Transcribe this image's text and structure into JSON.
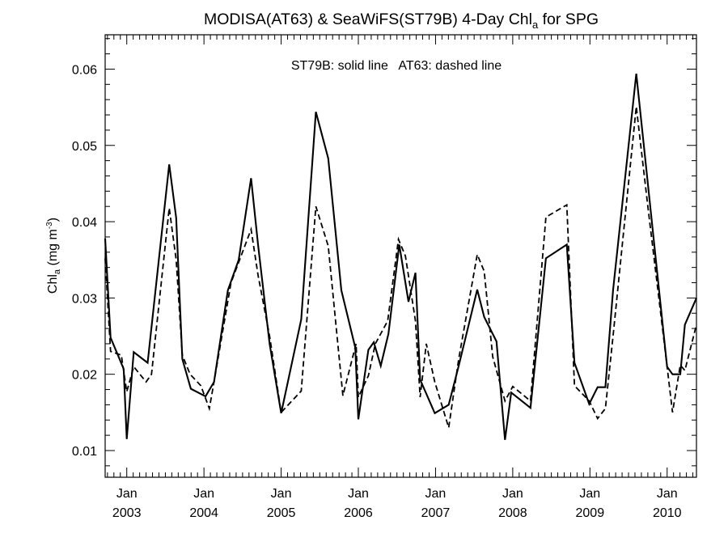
{
  "chart_data": {
    "type": "line",
    "title_main": "MODISA(AT63) & SeaWiFS(ST79B) 4-Day Chl",
    "title_sub": "a",
    "title_tail": " for SPG",
    "annotation": "ST79B: solid line   AT63: dashed line",
    "ylabel_main": "Chl",
    "ylabel_sub": "a",
    "ylabel_unit_open": " (mg m",
    "ylabel_unit_sup": "-3",
    "ylabel_unit_close": ")",
    "xlim": [
      2002.72,
      2010.38
    ],
    "ylim": [
      0.0065,
      0.0645
    ],
    "yticks": [
      0.01,
      0.02,
      0.03,
      0.04,
      0.05,
      0.06
    ],
    "ytick_labels": [
      "0.01",
      "0.02",
      "0.03",
      "0.04",
      "0.05",
      "0.06"
    ],
    "xticks": [
      2003,
      2004,
      2005,
      2006,
      2007,
      2008,
      2009,
      2010
    ],
    "xtick_labels_top": [
      "Jan",
      "Jan",
      "Jan",
      "Jan",
      "Jan",
      "Jan",
      "Jan",
      "Jan"
    ],
    "xtick_labels_bottom": [
      "2003",
      "2004",
      "2005",
      "2006",
      "2007",
      "2008",
      "2009",
      "2010"
    ],
    "series": [
      {
        "name": "ST79B",
        "style": "solid",
        "color": "#000000",
        "points": [
          [
            2002.72,
            0.0378
          ],
          [
            2002.79,
            0.0248
          ],
          [
            2002.96,
            0.0207
          ],
          [
            2003.0,
            0.0115
          ],
          [
            2003.09,
            0.0229
          ],
          [
            2003.27,
            0.0215
          ],
          [
            2003.55,
            0.0475
          ],
          [
            2003.64,
            0.0405
          ],
          [
            2003.72,
            0.022
          ],
          [
            2003.83,
            0.0181
          ],
          [
            2004.02,
            0.0171
          ],
          [
            2004.13,
            0.019
          ],
          [
            2004.31,
            0.031
          ],
          [
            2004.45,
            0.035
          ],
          [
            2004.61,
            0.0457
          ],
          [
            2004.7,
            0.037
          ],
          [
            2004.85,
            0.024
          ],
          [
            2005.0,
            0.0149
          ],
          [
            2005.26,
            0.0272
          ],
          [
            2005.45,
            0.0544
          ],
          [
            2005.61,
            0.0483
          ],
          [
            2005.78,
            0.031
          ],
          [
            2005.96,
            0.0235
          ],
          [
            2006.0,
            0.0141
          ],
          [
            2006.13,
            0.0232
          ],
          [
            2006.2,
            0.0242
          ],
          [
            2006.29,
            0.0211
          ],
          [
            2006.39,
            0.0253
          ],
          [
            2006.53,
            0.037
          ],
          [
            2006.65,
            0.0295
          ],
          [
            2006.74,
            0.0333
          ],
          [
            2006.8,
            0.0193
          ],
          [
            2006.99,
            0.0149
          ],
          [
            2007.17,
            0.016
          ],
          [
            2007.3,
            0.0211
          ],
          [
            2007.54,
            0.0311
          ],
          [
            2007.63,
            0.0275
          ],
          [
            2007.79,
            0.0243
          ],
          [
            2007.9,
            0.0114
          ],
          [
            2007.98,
            0.0176
          ],
          [
            2008.23,
            0.0156
          ],
          [
            2008.43,
            0.0352
          ],
          [
            2008.7,
            0.037
          ],
          [
            2008.8,
            0.0215
          ],
          [
            2008.99,
            0.0161
          ],
          [
            2009.1,
            0.0183
          ],
          [
            2009.2,
            0.0183
          ],
          [
            2009.3,
            0.031
          ],
          [
            2009.6,
            0.0594
          ],
          [
            2009.75,
            0.045
          ],
          [
            2010.0,
            0.021
          ],
          [
            2010.07,
            0.02
          ],
          [
            2010.17,
            0.02
          ],
          [
            2010.23,
            0.0265
          ],
          [
            2010.38,
            0.03
          ]
        ]
      },
      {
        "name": "AT63",
        "style": "dashed",
        "color": "#000000",
        "points": [
          [
            2002.72,
            0.0352
          ],
          [
            2002.79,
            0.023
          ],
          [
            2002.93,
            0.0225
          ],
          [
            2003.0,
            0.0177
          ],
          [
            2003.09,
            0.021
          ],
          [
            2003.25,
            0.019
          ],
          [
            2003.32,
            0.02
          ],
          [
            2003.55,
            0.0418
          ],
          [
            2003.64,
            0.035
          ],
          [
            2003.72,
            0.0225
          ],
          [
            2003.82,
            0.02
          ],
          [
            2003.96,
            0.0185
          ],
          [
            2004.07,
            0.0155
          ],
          [
            2004.13,
            0.019
          ],
          [
            2004.35,
            0.032
          ],
          [
            2004.61,
            0.039
          ],
          [
            2004.7,
            0.033
          ],
          [
            2004.85,
            0.025
          ],
          [
            2005.0,
            0.015
          ],
          [
            2005.26,
            0.0178
          ],
          [
            2005.45,
            0.042
          ],
          [
            2005.61,
            0.0368
          ],
          [
            2005.8,
            0.0172
          ],
          [
            2005.97,
            0.024
          ],
          [
            2006.0,
            0.017
          ],
          [
            2006.13,
            0.0198
          ],
          [
            2006.22,
            0.024
          ],
          [
            2006.38,
            0.027
          ],
          [
            2006.52,
            0.0377
          ],
          [
            2006.61,
            0.0355
          ],
          [
            2006.74,
            0.027
          ],
          [
            2006.8,
            0.017
          ],
          [
            2006.88,
            0.024
          ],
          [
            2006.99,
            0.019
          ],
          [
            2007.17,
            0.013
          ],
          [
            2007.3,
            0.022
          ],
          [
            2007.54,
            0.0357
          ],
          [
            2007.63,
            0.0335
          ],
          [
            2007.74,
            0.0223
          ],
          [
            2007.9,
            0.0165
          ],
          [
            2008.0,
            0.0184
          ],
          [
            2008.23,
            0.0165
          ],
          [
            2008.43,
            0.0406
          ],
          [
            2008.7,
            0.0422
          ],
          [
            2008.8,
            0.0185
          ],
          [
            2008.99,
            0.0165
          ],
          [
            2009.1,
            0.0142
          ],
          [
            2009.2,
            0.0155
          ],
          [
            2009.3,
            0.025
          ],
          [
            2009.6,
            0.0551
          ],
          [
            2009.75,
            0.042
          ],
          [
            2010.0,
            0.021
          ],
          [
            2010.07,
            0.015
          ],
          [
            2010.17,
            0.0212
          ],
          [
            2010.23,
            0.0205
          ],
          [
            2010.38,
            0.0265
          ]
        ]
      }
    ]
  }
}
